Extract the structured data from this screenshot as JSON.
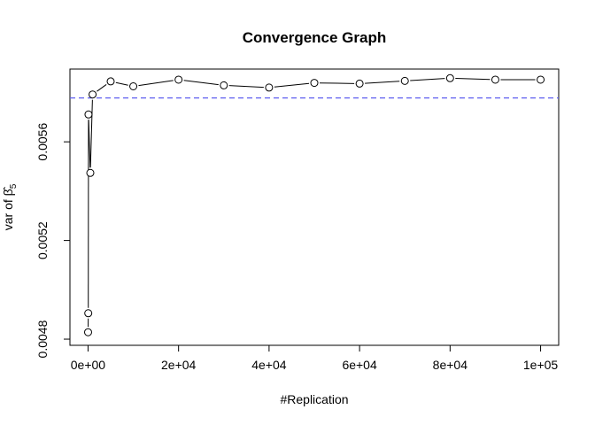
{
  "chart_data": {
    "type": "line",
    "title": "Convergence Graph",
    "xlabel": "#Replication",
    "ylabel": {
      "prefix": "var of ",
      "symbol": "β",
      "accent": "^",
      "subscript": "5"
    },
    "xlim": [
      -4000,
      104000
    ],
    "ylim": [
      0.004775,
      0.005895
    ],
    "x_ticks": [
      0,
      20000,
      40000,
      60000,
      80000,
      100000
    ],
    "x_tick_labels": [
      "0e+00",
      "2e+04",
      "4e+04",
      "6e+04",
      "8e+04",
      "1e+05"
    ],
    "y_ticks": [
      0.0048,
      0.0052,
      0.0056
    ],
    "y_tick_labels": [
      "0.0048",
      "0.0052",
      "0.0056"
    ],
    "grid": false,
    "series": [
      {
        "style": "points-and-lines",
        "color": "#000000",
        "x": [
          10,
          50,
          100,
          500,
          1000,
          5000,
          10000,
          20000,
          30000,
          40000,
          50000,
          60000,
          70000,
          80000,
          90000,
          100000
        ],
        "y": [
          0.004828,
          0.004905,
          0.005711,
          0.005474,
          0.005792,
          0.005845,
          0.005825,
          0.005852,
          0.005829,
          0.00582,
          0.005839,
          0.005836,
          0.005847,
          0.005858,
          0.005852,
          0.005852
        ]
      }
    ],
    "reference_line": {
      "y": 0.005778,
      "color": "#5f5fef",
      "style": "dashed"
    }
  }
}
